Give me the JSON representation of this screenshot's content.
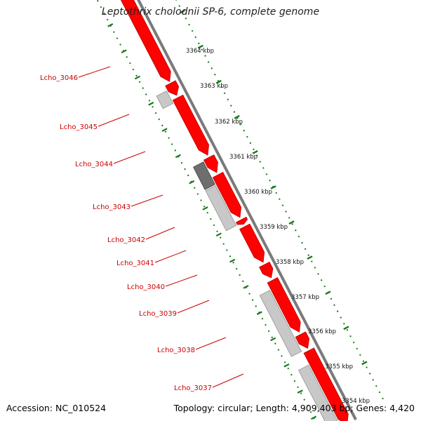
{
  "title": "Leptothrix cholodnii SP-6, complete genome",
  "accession": "Accession: NC_010524",
  "stats": "Topology: circular; Length: 4,909,403 bp; Genes: 4,420",
  "colors": {
    "cds": "#ff0000",
    "cds_shade": "#c80000",
    "gene_light": "#c8c8c8",
    "gene_dark": "#6e6e6e",
    "backbone": "#7a7a7a",
    "ruler": "#1a7a1a",
    "label": "#cc0000"
  },
  "ruler_labels": [
    "3364 kbp",
    "3363 kbp",
    "3362 kbp",
    "3361 kbp",
    "3360 kbp",
    "3359 kbp",
    "3358 kbp",
    "3357 kbp",
    "3356 kbp",
    "3355 kbp",
    "3354 kbp"
  ],
  "gene_labels": [
    "Lcho_3046",
    "Lcho_3045",
    "Lcho_3044",
    "Lcho_3043",
    "Lcho_3042",
    "Lcho_3041",
    "Lcho_3040",
    "Lcho_3039",
    "Lcho_3038",
    "Lcho_3037"
  ]
}
